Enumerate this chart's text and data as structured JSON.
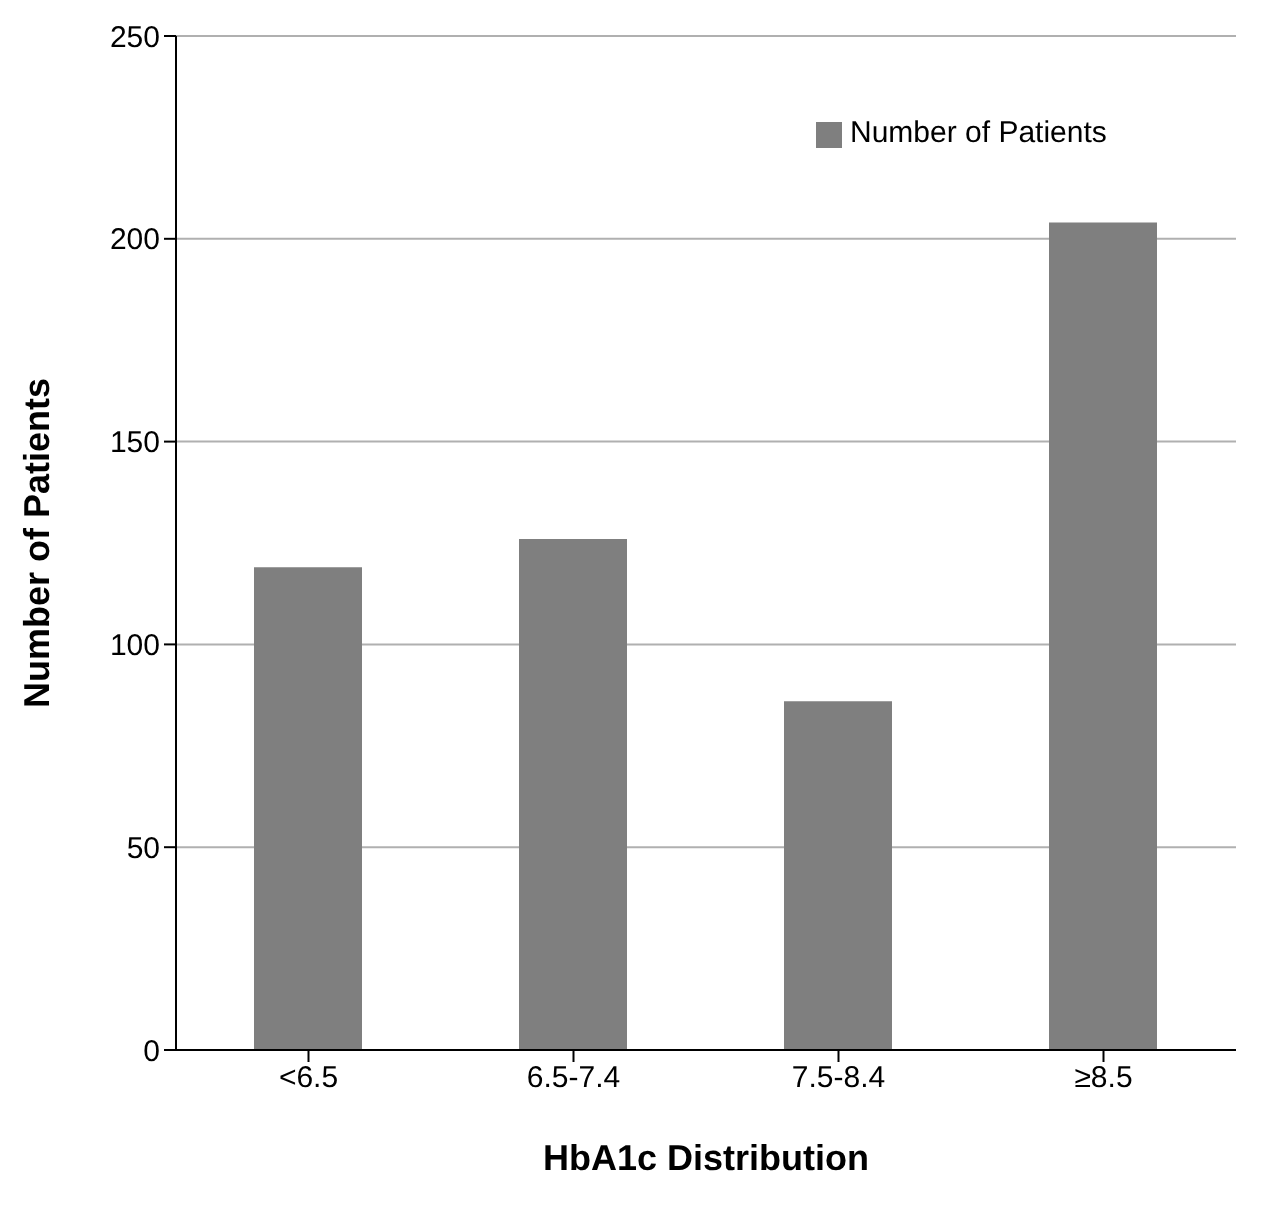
{
  "chart_data": {
    "type": "bar",
    "xlabel": "HbA1c Distribution",
    "ylabel": "Number of Patients",
    "categories": [
      "<6.5",
      "6.5-7.4",
      "7.5-8.4",
      "≥8.5"
    ],
    "series": [
      {
        "name": "Number of Patients",
        "color": "#7f7f7f",
        "values": [
          119,
          126,
          86,
          204
        ]
      }
    ],
    "ylim": [
      0,
      250
    ],
    "yticks": [
      0,
      50,
      100,
      150,
      200,
      250
    ],
    "grid": "y",
    "legend": "top right"
  }
}
